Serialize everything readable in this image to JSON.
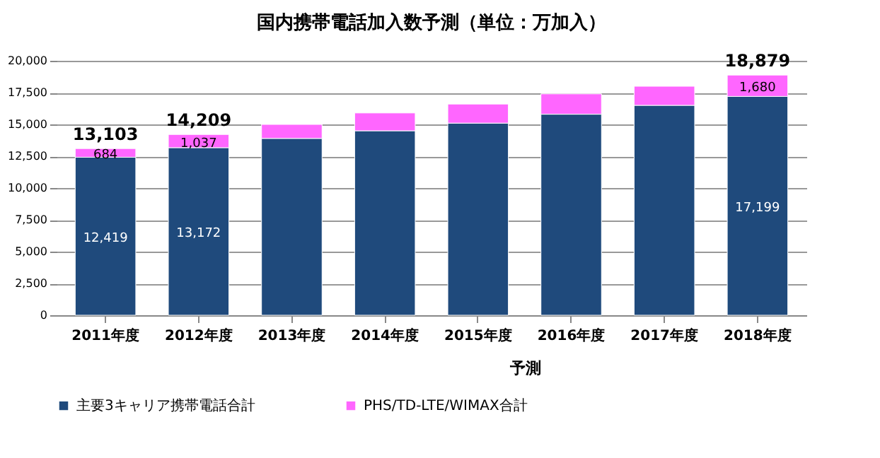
{
  "chart_data": {
    "type": "bar",
    "title": "国内携帯電話加入数予測（単位：万加入）",
    "categories": [
      "2011年度",
      "2012年度",
      "2013年度",
      "2014年度",
      "2015年度",
      "2016年度",
      "2017年度",
      "2018年度"
    ],
    "stacked": true,
    "series": [
      {
        "name": "主要3キャリア携帯電話合計",
        "color": "#1f4a7c",
        "values": [
          12419,
          13172,
          13900,
          14500,
          15100,
          15800,
          16500,
          17199
        ],
        "value_labels": [
          "12,419",
          "13,172",
          null,
          null,
          null,
          null,
          null,
          "17,199"
        ]
      },
      {
        "name": "PHS/TD-LTE/WIMAX合計",
        "color": "#ff66ff",
        "values": [
          684,
          1037,
          1100,
          1400,
          1500,
          1600,
          1500,
          1680
        ],
        "value_labels": [
          "684",
          "1,037",
          null,
          null,
          null,
          null,
          null,
          "1,680"
        ]
      }
    ],
    "totals": [
      "13,103",
      "14,209",
      null,
      null,
      null,
      null,
      null,
      "18,879"
    ],
    "ylim": [
      0,
      20000
    ],
    "yticks": [
      0,
      {
        "value": 2500,
        "label": "2,500"
      },
      {
        "value": 5000,
        "label": "5,000"
      },
      {
        "value": 7500,
        "label": "7,500"
      },
      {
        "value": 10000,
        "label": "10,000"
      },
      {
        "value": 12500,
        "label": "12,500"
      },
      {
        "value": 15000,
        "label": "15,000"
      },
      {
        "value": 17500,
        "label": "17,500"
      },
      {
        "value": 20000,
        "label": "20,000"
      }
    ],
    "annotations": [
      "予測"
    ],
    "grid": "y",
    "legend": "bottom"
  }
}
